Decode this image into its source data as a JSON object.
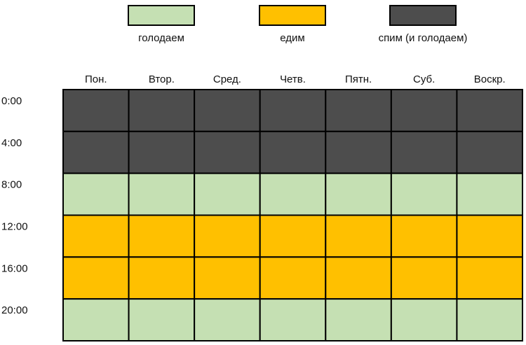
{
  "legend": [
    {
      "label": "голодаем",
      "color": "#c5e0b3"
    },
    {
      "label": "едим",
      "color": "#ffc000"
    },
    {
      "label": "спим (и голодаем)",
      "color": "#4d4d4d"
    }
  ],
  "grid": {
    "days": [
      "Пон.",
      "Втор.",
      "Сред.",
      "Четв.",
      "Пятн.",
      "Суб.",
      "Воскр."
    ],
    "rows": [
      {
        "time": "0:00",
        "cells": [
          "#4d4d4d",
          "#4d4d4d",
          "#4d4d4d",
          "#4d4d4d",
          "#4d4d4d",
          "#4d4d4d",
          "#4d4d4d"
        ]
      },
      {
        "time": "4:00",
        "cells": [
          "#4d4d4d",
          "#4d4d4d",
          "#4d4d4d",
          "#4d4d4d",
          "#4d4d4d",
          "#4d4d4d",
          "#4d4d4d"
        ]
      },
      {
        "time": "8:00",
        "cells": [
          "#c5e0b3",
          "#c5e0b3",
          "#c5e0b3",
          "#c5e0b3",
          "#c5e0b3",
          "#c5e0b3",
          "#c5e0b3"
        ]
      },
      {
        "time": "12:00",
        "cells": [
          "#ffc000",
          "#ffc000",
          "#ffc000",
          "#ffc000",
          "#ffc000",
          "#ffc000",
          "#ffc000"
        ]
      },
      {
        "time": "16:00",
        "cells": [
          "#ffc000",
          "#ffc000",
          "#ffc000",
          "#ffc000",
          "#ffc000",
          "#ffc000",
          "#ffc000"
        ]
      },
      {
        "time": "20:00",
        "cells": [
          "#c5e0b3",
          "#c5e0b3",
          "#c5e0b3",
          "#c5e0b3",
          "#c5e0b3",
          "#c5e0b3",
          "#c5e0b3"
        ]
      }
    ]
  }
}
